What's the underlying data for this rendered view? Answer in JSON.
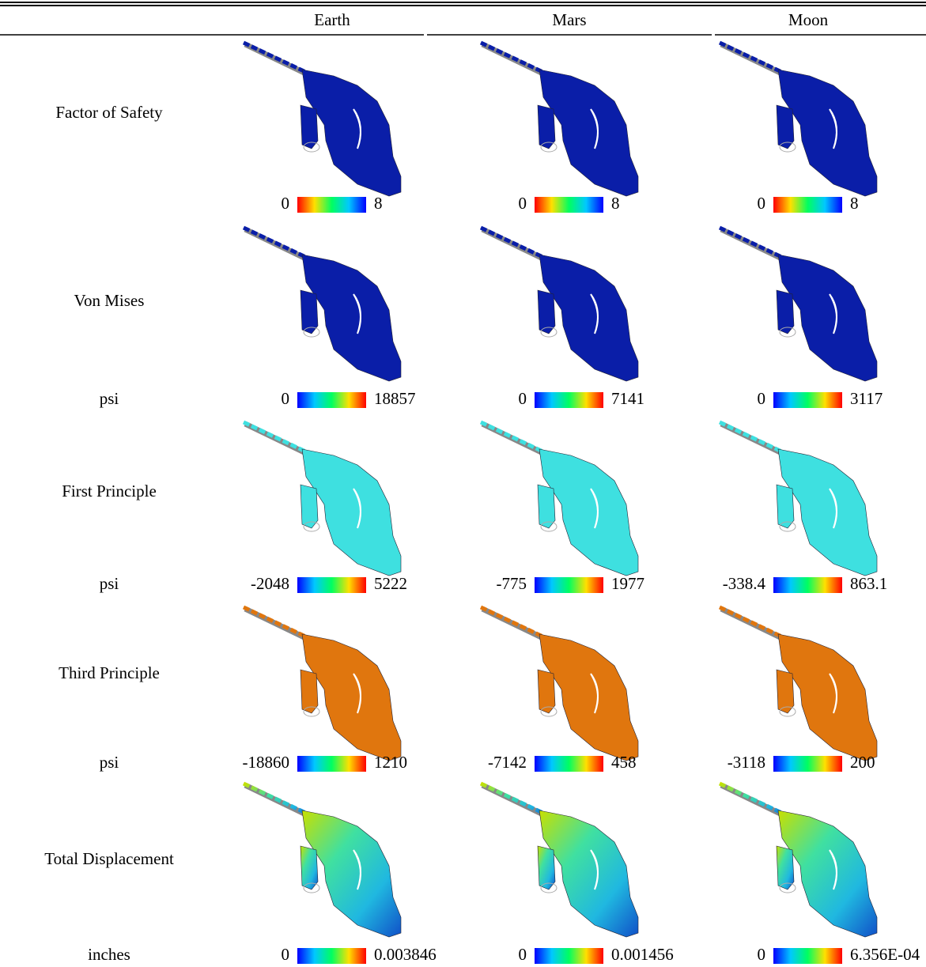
{
  "header": {
    "columns": [
      "Earth",
      "Mars",
      "Moon"
    ]
  },
  "rows": [
    {
      "label": "Factor of Safety",
      "cells": [
        {
          "min": 0,
          "max": 8
        },
        {
          "min": 0,
          "max": 8
        },
        {
          "min": 0,
          "max": 8
        }
      ]
    },
    {
      "label": "Von Mises",
      "unit": "psi",
      "cells": [
        {
          "min": 0,
          "max": 18857
        },
        {
          "min": 0,
          "max": 7141
        },
        {
          "min": 0,
          "max": 3117
        }
      ]
    },
    {
      "label": "First Principle",
      "unit": "psi",
      "cells": [
        {
          "min": -2048,
          "max": 5222
        },
        {
          "min": -775,
          "max": 1977
        },
        {
          "min": -338.4,
          "max": 863.1
        }
      ]
    },
    {
      "label": "Third Principle",
      "unit": "psi",
      "cells": [
        {
          "min": -18860,
          "max": 1210
        },
        {
          "min": -7142,
          "max": 458
        },
        {
          "min": -3118,
          "max": 200
        }
      ]
    },
    {
      "label": "Total Displacement",
      "unit": "inches",
      "cells": [
        {
          "min": 0,
          "max": 0.003846
        },
        {
          "min": 0,
          "max": 0.001456
        },
        {
          "min": 0,
          "max": "6.356E-04"
        }
      ]
    }
  ]
}
